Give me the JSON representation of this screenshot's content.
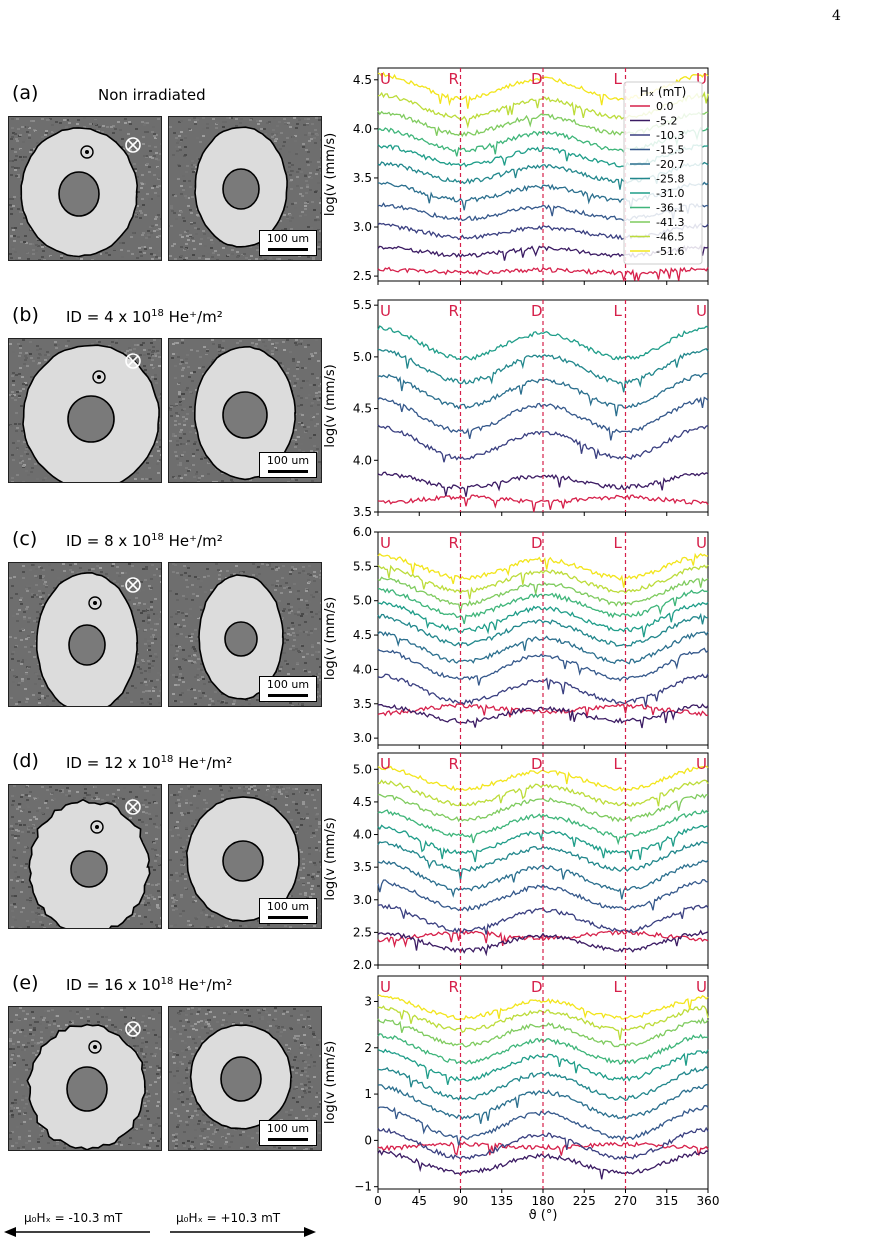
{
  "page_number": "4",
  "panels": [
    {
      "label": "(a)",
      "title": "Non irradiated",
      "has_id": false,
      "id_value": "",
      "id_exp": "",
      "id_unit": ""
    },
    {
      "label": "(b)",
      "title": "ID = 4 x 10",
      "has_id": true,
      "id_value": "4",
      "id_exp": "18",
      "id_unit": " He⁺/m²"
    },
    {
      "label": "(c)",
      "title": "ID = 8 x 10",
      "has_id": true,
      "id_value": "8",
      "id_exp": "18",
      "id_unit": " He⁺/m²"
    },
    {
      "label": "(d)",
      "title": "ID = 12 x 10",
      "has_id": true,
      "id_value": "12",
      "id_exp": "18",
      "id_unit": " He⁺/m²"
    },
    {
      "label": "(e)",
      "title": "ID = 16 x 10",
      "has_id": true,
      "id_value": "16",
      "id_exp": "18",
      "id_unit": " He⁺/m²"
    }
  ],
  "scalebar_label": "100 um",
  "field_left": "μ₀Hₓ = -10.3 mT",
  "field_right": "μ₀Hₓ = +10.3 mT",
  "chart_data": {
    "type": "line",
    "xlabel": "ϑ (°)",
    "ylabel": "log(v (mm/s)",
    "xlim": [
      0,
      360
    ],
    "xticks": [
      0,
      45,
      90,
      135,
      180,
      225,
      270,
      315,
      360
    ],
    "direction_labels": [
      {
        "text": "U",
        "x": 0
      },
      {
        "text": "R",
        "x": 90
      },
      {
        "text": "D",
        "x": 180
      },
      {
        "text": "L",
        "x": 270
      },
      {
        "text": "U",
        "x": 360
      }
    ],
    "legend": {
      "title": "Hₓ (mT)",
      "entries": [
        "0.0",
        "-5.2",
        "-10.3",
        "-15.5",
        "-20.7",
        "-25.8",
        "-31.0",
        "-36.1",
        "-41.3",
        "-46.5",
        "-51.6"
      ],
      "location": "top-right"
    },
    "colors": [
      "#d6204a",
      "#3b1b63",
      "#3a3f80",
      "#35588b",
      "#2b6f8e",
      "#22878c",
      "#1f9d89",
      "#3fb57a",
      "#7fcb5f",
      "#bcdc3a",
      "#f2e51b"
    ],
    "panels": [
      {
        "ylim": [
          2.45,
          4.62
        ],
        "yticks": [
          2.5,
          3.0,
          3.5,
          4.0,
          4.5
        ],
        "ytick_labels": [
          "2.5",
          "3.0",
          "3.5",
          "4.0",
          "4.5"
        ],
        "base": [
          2.55,
          2.75,
          2.95,
          3.15,
          3.35,
          3.55,
          3.72,
          3.88,
          4.05,
          4.22,
          4.42
        ],
        "amp": [
          0.03,
          0.08,
          0.11,
          0.13,
          0.15,
          0.17,
          0.18,
          0.19,
          0.2,
          0.21,
          0.22
        ],
        "n_series": 11
      },
      {
        "ylim": [
          3.5,
          5.55
        ],
        "yticks": [
          3.5,
          4.0,
          4.5,
          5.0,
          5.5
        ],
        "ytick_labels": [
          "3.5",
          "4.0",
          "4.5",
          "5.0",
          "5.5"
        ],
        "base": [
          3.62,
          3.8,
          4.16,
          4.42,
          4.66,
          4.9,
          5.12
        ],
        "amp": [
          -0.05,
          0.12,
          0.27,
          0.28,
          0.28,
          0.28,
          0.27
        ],
        "n_series": 7
      },
      {
        "ylim": [
          2.9,
          6.0
        ],
        "yticks": [
          3.0,
          3.5,
          4.0,
          4.5,
          5.0,
          5.5,
          6.0
        ],
        "ytick_labels": [
          "3.0",
          "3.5",
          "4.0",
          "4.5",
          "5.0",
          "5.5",
          "6.0"
        ],
        "base": [
          3.42,
          3.35,
          3.7,
          4.05,
          4.3,
          4.55,
          4.75,
          4.95,
          5.12,
          5.3,
          5.48
        ],
        "amp": [
          -0.1,
          0.2,
          0.35,
          0.38,
          0.38,
          0.37,
          0.36,
          0.34,
          0.33,
          0.32,
          0.3
        ],
        "n_series": 11
      },
      {
        "ylim": [
          2.0,
          5.25
        ],
        "yticks": [
          2.0,
          2.5,
          3.0,
          3.5,
          4.0,
          4.5,
          5.0
        ],
        "ytick_labels": [
          "2.0",
          "2.5",
          "3.0",
          "3.5",
          "4.0",
          "4.5",
          "5.0"
        ],
        "base": [
          2.45,
          2.35,
          2.7,
          3.05,
          3.35,
          3.65,
          3.9,
          4.15,
          4.4,
          4.62,
          4.85
        ],
        "amp": [
          -0.1,
          0.25,
          0.35,
          0.38,
          0.38,
          0.37,
          0.36,
          0.34,
          0.33,
          0.32,
          0.3
        ],
        "n_series": 11
      },
      {
        "ylim": [
          -1.05,
          3.55
        ],
        "yticks": [
          -1,
          0,
          1,
          2,
          3
        ],
        "ytick_labels": [
          "−1",
          "0",
          "1",
          "2",
          "3"
        ],
        "base": [
          -0.12,
          -0.5,
          -0.1,
          0.35,
          0.8,
          1.2,
          1.6,
          1.95,
          2.3,
          2.6,
          2.85
        ],
        "amp": [
          -0.08,
          0.4,
          0.55,
          0.6,
          0.6,
          0.58,
          0.55,
          0.52,
          0.48,
          0.44,
          0.4
        ],
        "n_series": 11
      }
    ]
  }
}
